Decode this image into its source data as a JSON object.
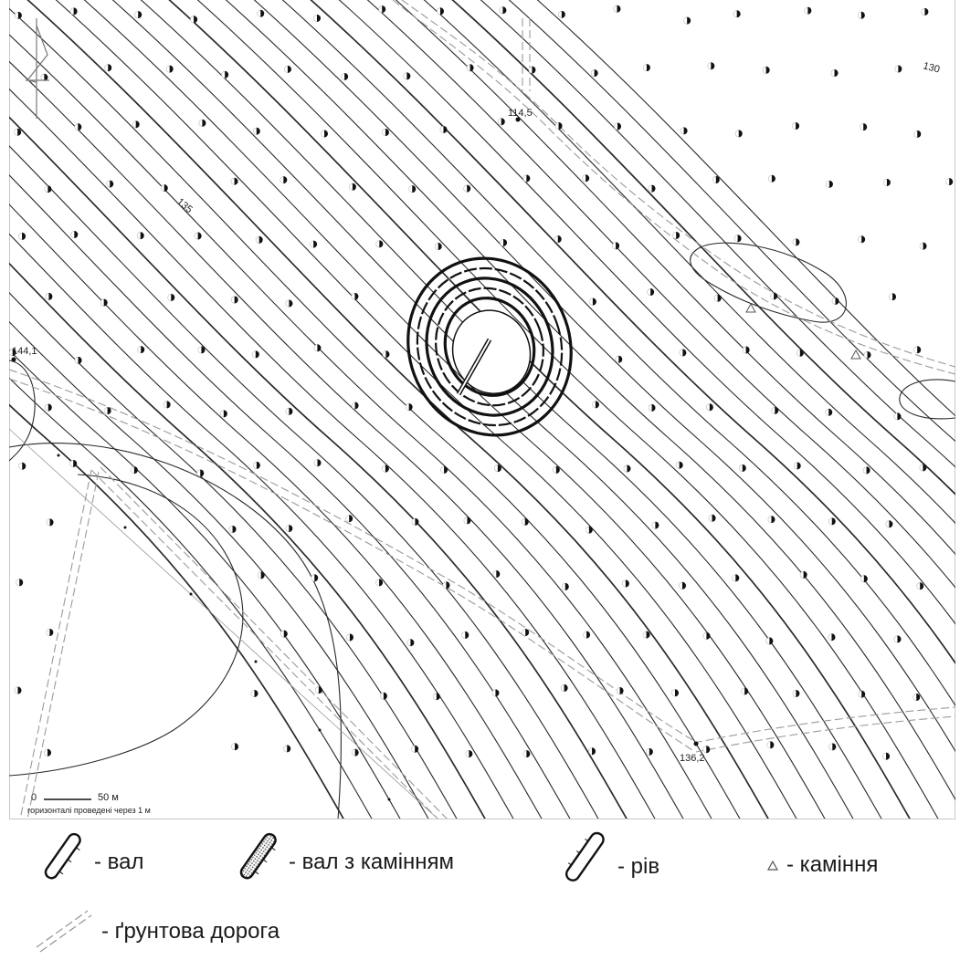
{
  "map": {
    "contour_labels": [
      "135",
      "130"
    ],
    "spot_heights": [
      {
        "value": "114,5"
      },
      {
        "value": "144,1"
      },
      {
        "value": "136,2"
      }
    ],
    "scale_bar": {
      "start": "0",
      "end": "50 м"
    },
    "contour_note": "горизонталі проведені через 1 м"
  },
  "legend": {
    "items": [
      {
        "symbol": "rampart",
        "label": "- вал"
      },
      {
        "symbol": "rampart-with-stones",
        "label": "- вал з камінням"
      },
      {
        "symbol": "ditch",
        "label": "- рів"
      },
      {
        "symbol": "stones",
        "label": "- каміння"
      },
      {
        "symbol": "dirt-road",
        "label": "- ґрунтова дорога"
      }
    ]
  }
}
